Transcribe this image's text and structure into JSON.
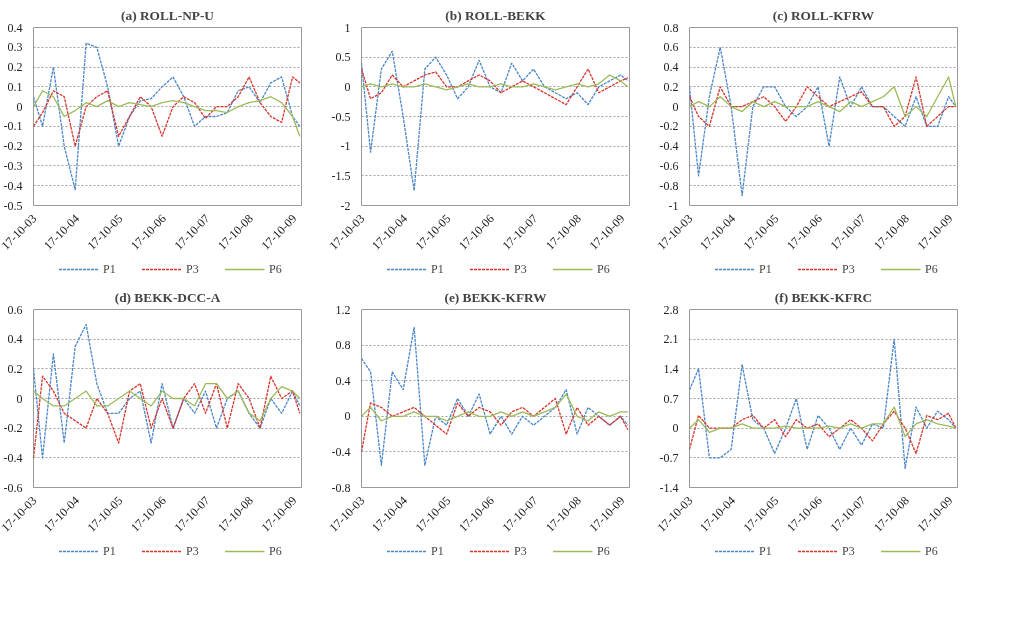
{
  "chart_data": [
    {
      "type": "line",
      "title": "(a) ROLL-NP-U",
      "x": [
        "2003-10-17",
        "2004-01",
        "2004-04",
        "2004-07",
        "2004-10",
        "2005-01",
        "2005-04",
        "2005-07",
        "2005-10",
        "2006-01",
        "2006-04",
        "2006-07",
        "2006-10",
        "2007-01",
        "2007-04",
        "2007-07",
        "2007-10",
        "2008-01",
        "2008-04",
        "2008-07",
        "2008-10",
        "2009-01",
        "2009-04",
        "2009-07",
        "2009-10",
        "2009-12"
      ],
      "xlim": [
        "2003-10-17",
        "2009-12-15"
      ],
      "xticks": [
        {
          "value": "2003-10-17",
          "label": "17-10-03"
        },
        {
          "value": "2004-10-17",
          "label": "17-10-04"
        },
        {
          "value": "2005-10-17",
          "label": "17-10-05"
        },
        {
          "value": "2006-10-17",
          "label": "17-10-06"
        },
        {
          "value": "2007-10-17",
          "label": "17-10-07"
        },
        {
          "value": "2008-10-17",
          "label": "17-10-08"
        },
        {
          "value": "2009-10-17",
          "label": "17-10-09"
        }
      ],
      "ylim": [
        -0.5,
        0.4
      ],
      "yticks": [
        -0.5,
        -0.4,
        -0.3,
        -0.2,
        -0.1,
        0,
        0.1,
        0.2,
        0.3,
        0.4
      ],
      "grid": "y",
      "legend": "bottom",
      "series": [
        {
          "name": "P1",
          "color": "#4a86c8",
          "line_style": "dashed",
          "values": [
            0.05,
            -0.1,
            0.2,
            -0.2,
            -0.42,
            0.32,
            0.3,
            0.1,
            -0.2,
            -0.05,
            0.03,
            0.04,
            0.1,
            0.15,
            0.05,
            -0.1,
            -0.05,
            -0.05,
            -0.03,
            0.08,
            0.1,
            0.02,
            0.12,
            0.15,
            -0.05,
            -0.1
          ]
        },
        {
          "name": "P3",
          "color": "#d9342b",
          "line_style": "dashed",
          "values": [
            -0.1,
            -0.03,
            0.08,
            0.05,
            -0.2,
            0.0,
            0.05,
            0.08,
            -0.15,
            -0.05,
            0.05,
            0.0,
            -0.15,
            0.0,
            0.05,
            0.02,
            -0.06,
            0.0,
            0.0,
            0.05,
            0.15,
            0.02,
            -0.05,
            -0.08,
            0.15,
            0.12
          ]
        },
        {
          "name": "P6",
          "color": "#9bbb59",
          "line_style": "solid",
          "values": [
            0.0,
            0.08,
            0.05,
            -0.05,
            -0.02,
            0.02,
            0.0,
            0.03,
            0.0,
            0.02,
            0.01,
            0.0,
            0.02,
            0.03,
            0.02,
            0.0,
            -0.02,
            -0.02,
            -0.03,
            0.0,
            0.02,
            0.03,
            0.05,
            0.02,
            -0.05,
            -0.15
          ]
        }
      ]
    },
    {
      "type": "line",
      "title": "(b) ROLL-BEKK",
      "x": [
        "2003-10-17",
        "2004-01",
        "2004-04",
        "2004-07",
        "2004-10",
        "2005-01",
        "2005-04",
        "2005-07",
        "2005-10",
        "2006-01",
        "2006-04",
        "2006-07",
        "2006-10",
        "2007-01",
        "2007-04",
        "2007-07",
        "2007-10",
        "2008-01",
        "2008-04",
        "2008-07",
        "2008-10",
        "2009-01",
        "2009-04",
        "2009-07",
        "2009-10",
        "2009-12"
      ],
      "xlim": [
        "2003-10-17",
        "2009-12-15"
      ],
      "xticks": [
        {
          "value": "2003-10-17",
          "label": "17-10-03"
        },
        {
          "value": "2004-10-17",
          "label": "17-10-04"
        },
        {
          "value": "2005-10-17",
          "label": "17-10-05"
        },
        {
          "value": "2006-10-17",
          "label": "17-10-06"
        },
        {
          "value": "2007-10-17",
          "label": "17-10-07"
        },
        {
          "value": "2008-10-17",
          "label": "17-10-08"
        },
        {
          "value": "2009-10-17",
          "label": "17-10-09"
        }
      ],
      "ylim": [
        -2,
        1
      ],
      "yticks": [
        -2,
        -1.5,
        -1,
        -0.5,
        0,
        0.5,
        1
      ],
      "grid": "y",
      "legend": "bottom",
      "series": [
        {
          "name": "P1",
          "color": "#4a86c8",
          "line_style": "dashed",
          "values": [
            0.4,
            -1.1,
            0.3,
            0.6,
            -0.5,
            -1.75,
            0.3,
            0.5,
            0.2,
            -0.2,
            0.0,
            0.45,
            0.0,
            -0.1,
            0.4,
            0.1,
            0.3,
            0.0,
            -0.1,
            -0.2,
            -0.1,
            -0.3,
            0.0,
            0.1,
            0.2,
            0.1
          ]
        },
        {
          "name": "P3",
          "color": "#d9342b",
          "line_style": "dashed",
          "values": [
            0.3,
            -0.2,
            -0.1,
            0.2,
            0.0,
            0.1,
            0.2,
            0.25,
            0.0,
            0.0,
            0.1,
            0.2,
            0.1,
            -0.1,
            0.0,
            0.1,
            0.0,
            -0.1,
            -0.2,
            -0.3,
            0.0,
            0.3,
            -0.1,
            0.0,
            0.1,
            0.15
          ]
        },
        {
          "name": "P6",
          "color": "#9bbb59",
          "line_style": "solid",
          "values": [
            0.0,
            0.05,
            0.0,
            0.05,
            0.0,
            0.0,
            0.05,
            0.0,
            -0.05,
            0.0,
            0.05,
            0.0,
            0.0,
            0.05,
            0.0,
            0.0,
            0.05,
            0.0,
            -0.05,
            0.0,
            0.05,
            0.0,
            0.05,
            0.2,
            0.1,
            0.0
          ]
        }
      ]
    },
    {
      "type": "line",
      "title": "(c) ROLL-KFRW",
      "x": [
        "2003-10-17",
        "2004-01",
        "2004-04",
        "2004-07",
        "2004-10",
        "2005-01",
        "2005-04",
        "2005-07",
        "2005-10",
        "2006-01",
        "2006-04",
        "2006-07",
        "2006-10",
        "2007-01",
        "2007-04",
        "2007-07",
        "2007-10",
        "2008-01",
        "2008-04",
        "2008-07",
        "2008-10",
        "2009-01",
        "2009-04",
        "2009-07",
        "2009-10",
        "2009-12"
      ],
      "xlim": [
        "2003-10-17",
        "2009-12-15"
      ],
      "xticks": [
        {
          "value": "2003-10-17",
          "label": "17-10-03"
        },
        {
          "value": "2004-10-17",
          "label": "17-10-04"
        },
        {
          "value": "2005-10-17",
          "label": "17-10-05"
        },
        {
          "value": "2006-10-17",
          "label": "17-10-06"
        },
        {
          "value": "2007-10-17",
          "label": "17-10-07"
        },
        {
          "value": "2008-10-17",
          "label": "17-10-08"
        },
        {
          "value": "2009-10-17",
          "label": "17-10-09"
        }
      ],
      "ylim": [
        -1,
        0.8
      ],
      "yticks": [
        -1,
        -0.8,
        -0.6,
        -0.4,
        -0.2,
        0,
        0.2,
        0.4,
        0.6,
        0.8
      ],
      "grid": "y",
      "legend": "bottom",
      "series": [
        {
          "name": "P1",
          "color": "#4a86c8",
          "line_style": "dashed",
          "values": [
            0.2,
            -0.7,
            0.1,
            0.6,
            0.0,
            -0.9,
            0.0,
            0.2,
            0.2,
            0.0,
            -0.1,
            0.0,
            0.2,
            -0.4,
            0.3,
            0.0,
            0.2,
            0.0,
            0.0,
            -0.1,
            -0.2,
            0.1,
            -0.2,
            -0.2,
            0.1,
            0.0
          ]
        },
        {
          "name": "P3",
          "color": "#d9342b",
          "line_style": "dashed",
          "values": [
            0.1,
            -0.1,
            -0.2,
            0.2,
            0.0,
            0.0,
            0.05,
            0.1,
            0.0,
            -0.15,
            0.0,
            0.2,
            0.1,
            0.0,
            0.05,
            0.1,
            0.15,
            0.0,
            0.0,
            -0.2,
            -0.1,
            0.3,
            -0.2,
            -0.1,
            0.0,
            0.0
          ]
        },
        {
          "name": "P6",
          "color": "#9bbb59",
          "line_style": "solid",
          "values": [
            0.0,
            0.05,
            0.0,
            0.1,
            0.0,
            -0.05,
            0.05,
            0.0,
            0.05,
            0.0,
            0.0,
            0.0,
            0.05,
            0.0,
            -0.05,
            0.05,
            0.0,
            0.05,
            0.1,
            0.2,
            -0.1,
            0.0,
            -0.1,
            0.1,
            0.3,
            0.0
          ]
        }
      ]
    },
    {
      "type": "line",
      "title": "(d) BEKK-DCC-A",
      "x": [
        "2003-10-17",
        "2004-01",
        "2004-04",
        "2004-07",
        "2004-10",
        "2005-01",
        "2005-04",
        "2005-07",
        "2005-10",
        "2006-01",
        "2006-04",
        "2006-07",
        "2006-10",
        "2007-01",
        "2007-04",
        "2007-07",
        "2007-10",
        "2008-01",
        "2008-04",
        "2008-07",
        "2008-10",
        "2009-01",
        "2009-04",
        "2009-07",
        "2009-10",
        "2009-12"
      ],
      "xlim": [
        "2003-10-17",
        "2009-12-15"
      ],
      "xticks": [
        {
          "value": "2003-10-17",
          "label": "17-10-03"
        },
        {
          "value": "2004-10-17",
          "label": "17-10-04"
        },
        {
          "value": "2005-10-17",
          "label": "17-10-05"
        },
        {
          "value": "2006-10-17",
          "label": "17-10-06"
        },
        {
          "value": "2007-10-17",
          "label": "17-10-07"
        },
        {
          "value": "2008-10-17",
          "label": "17-10-08"
        },
        {
          "value": "2009-10-17",
          "label": "17-10-09"
        }
      ],
      "ylim": [
        -0.6,
        0.6
      ],
      "yticks": [
        -0.6,
        -0.4,
        -0.2,
        0,
        0.2,
        0.4,
        0.6
      ],
      "grid": "y",
      "legend": "bottom",
      "series": [
        {
          "name": "P1",
          "color": "#4a86c8",
          "line_style": "dashed",
          "values": [
            0.2,
            -0.4,
            0.3,
            -0.3,
            0.35,
            0.5,
            0.1,
            -0.1,
            -0.1,
            0.0,
            0.05,
            -0.3,
            0.1,
            -0.2,
            0.0,
            -0.1,
            0.05,
            -0.2,
            0.0,
            0.05,
            -0.1,
            -0.2,
            0.0,
            -0.1,
            0.05,
            -0.05
          ]
        },
        {
          "name": "P3",
          "color": "#d9342b",
          "line_style": "dashed",
          "values": [
            -0.4,
            0.15,
            0.05,
            -0.1,
            -0.15,
            -0.2,
            0.0,
            -0.1,
            -0.3,
            0.05,
            0.1,
            -0.2,
            0.0,
            -0.2,
            0.0,
            0.1,
            -0.1,
            0.1,
            -0.2,
            0.1,
            0.0,
            -0.2,
            0.15,
            0.0,
            0.05,
            -0.1
          ]
        },
        {
          "name": "P6",
          "color": "#9bbb59",
          "line_style": "solid",
          "values": [
            0.05,
            0.0,
            -0.05,
            -0.05,
            0.0,
            0.05,
            -0.05,
            -0.05,
            0.0,
            0.05,
            0.0,
            -0.05,
            0.05,
            0.0,
            0.0,
            -0.05,
            0.1,
            0.1,
            0.0,
            0.05,
            -0.1,
            -0.15,
            0.0,
            0.08,
            0.05,
            0.0
          ]
        }
      ]
    },
    {
      "type": "line",
      "title": "(e) BEKK-KFRW",
      "x": [
        "2003-10-17",
        "2004-01",
        "2004-04",
        "2004-07",
        "2004-10",
        "2005-01",
        "2005-04",
        "2005-07",
        "2005-10",
        "2006-01",
        "2006-04",
        "2006-07",
        "2006-10",
        "2007-01",
        "2007-04",
        "2007-07",
        "2007-10",
        "2008-01",
        "2008-04",
        "2008-07",
        "2008-10",
        "2009-01",
        "2009-04",
        "2009-07",
        "2009-10",
        "2009-12"
      ],
      "xlim": [
        "2003-10-17",
        "2009-12-15"
      ],
      "xticks": [
        {
          "value": "2003-10-17",
          "label": "17-10-03"
        },
        {
          "value": "2004-10-17",
          "label": "17-10-04"
        },
        {
          "value": "2005-10-17",
          "label": "17-10-05"
        },
        {
          "value": "2006-10-17",
          "label": "17-10-06"
        },
        {
          "value": "2007-10-17",
          "label": "17-10-07"
        },
        {
          "value": "2008-10-17",
          "label": "17-10-08"
        },
        {
          "value": "2009-10-17",
          "label": "17-10-09"
        }
      ],
      "ylim": [
        -0.8,
        1.2
      ],
      "yticks": [
        -0.8,
        -0.4,
        0,
        0.4,
        0.8,
        1.2
      ],
      "grid": "y",
      "legend": "bottom",
      "series": [
        {
          "name": "P1",
          "color": "#4a86c8",
          "line_style": "dashed",
          "values": [
            0.65,
            0.5,
            -0.55,
            0.5,
            0.3,
            1.0,
            -0.55,
            0.0,
            -0.1,
            0.2,
            0.0,
            0.25,
            -0.2,
            0.0,
            -0.2,
            0.0,
            -0.1,
            0.0,
            0.1,
            0.3,
            -0.2,
            0.1,
            0.0,
            -0.1,
            0.0,
            -0.1
          ]
        },
        {
          "name": "P3",
          "color": "#d9342b",
          "line_style": "dashed",
          "values": [
            -0.4,
            0.15,
            0.1,
            0.0,
            0.05,
            0.1,
            0.0,
            -0.1,
            -0.2,
            0.15,
            0.0,
            0.1,
            0.05,
            -0.1,
            0.05,
            0.1,
            0.0,
            0.1,
            0.2,
            -0.2,
            0.1,
            -0.1,
            0.0,
            -0.1,
            0.0,
            -0.15
          ]
        },
        {
          "name": "P6",
          "color": "#9bbb59",
          "line_style": "solid",
          "values": [
            0.0,
            0.1,
            -0.05,
            0.0,
            0.0,
            0.05,
            0.0,
            0.0,
            -0.05,
            0.0,
            0.05,
            0.0,
            0.0,
            0.05,
            0.0,
            0.05,
            0.0,
            0.05,
            0.1,
            0.25,
            0.0,
            -0.05,
            0.05,
            0.0,
            0.05,
            0.05
          ]
        }
      ]
    },
    {
      "type": "line",
      "title": "(f) BEKK-KFRC",
      "x": [
        "2003-10-17",
        "2004-01",
        "2004-04",
        "2004-07",
        "2004-10",
        "2005-01",
        "2005-04",
        "2005-07",
        "2005-10",
        "2006-01",
        "2006-04",
        "2006-07",
        "2006-10",
        "2007-01",
        "2007-04",
        "2007-07",
        "2007-10",
        "2008-01",
        "2008-04",
        "2008-07",
        "2008-10",
        "2009-01",
        "2009-04",
        "2009-07",
        "2009-10",
        "2009-12"
      ],
      "xlim": [
        "2003-10-17",
        "2009-12-15"
      ],
      "xticks": [
        {
          "value": "2003-10-17",
          "label": "17-10-03"
        },
        {
          "value": "2004-10-17",
          "label": "17-10-04"
        },
        {
          "value": "2005-10-17",
          "label": "17-10-05"
        },
        {
          "value": "2006-10-17",
          "label": "17-10-06"
        },
        {
          "value": "2007-10-17",
          "label": "17-10-07"
        },
        {
          "value": "2008-10-17",
          "label": "17-10-08"
        },
        {
          "value": "2009-10-17",
          "label": "17-10-09"
        }
      ],
      "ylim": [
        -1.4,
        2.8
      ],
      "yticks": [
        -1.4,
        -0.7,
        0,
        0.7,
        1.4,
        2.1,
        2.8
      ],
      "grid": "y",
      "legend": "bottom",
      "series": [
        {
          "name": "P1",
          "color": "#4a86c8",
          "line_style": "dashed",
          "values": [
            0.9,
            1.4,
            -0.7,
            -0.7,
            -0.5,
            1.5,
            0.2,
            0.0,
            -0.6,
            0.0,
            0.7,
            -0.5,
            0.3,
            0.0,
            -0.5,
            0.0,
            -0.4,
            0.1,
            0.0,
            2.1,
            -0.95,
            0.5,
            0.0,
            0.4,
            0.2,
            0.0
          ]
        },
        {
          "name": "P3",
          "color": "#d9342b",
          "line_style": "dashed",
          "values": [
            -0.5,
            0.3,
            0.0,
            0.0,
            0.0,
            0.2,
            0.3,
            0.0,
            0.2,
            -0.2,
            0.2,
            0.0,
            0.1,
            -0.2,
            0.0,
            0.2,
            0.0,
            -0.3,
            0.1,
            0.4,
            0.0,
            -0.6,
            0.3,
            0.2,
            0.35,
            0.0
          ]
        },
        {
          "name": "P6",
          "color": "#9bbb59",
          "line_style": "solid",
          "values": [
            0.0,
            0.2,
            -0.1,
            0.0,
            0.0,
            0.1,
            0.0,
            0.0,
            0.0,
            0.05,
            0.0,
            0.0,
            0.0,
            0.05,
            0.0,
            0.1,
            0.0,
            0.1,
            0.1,
            0.5,
            -0.2,
            0.1,
            0.2,
            0.1,
            0.05,
            0.0
          ]
        }
      ]
    }
  ]
}
